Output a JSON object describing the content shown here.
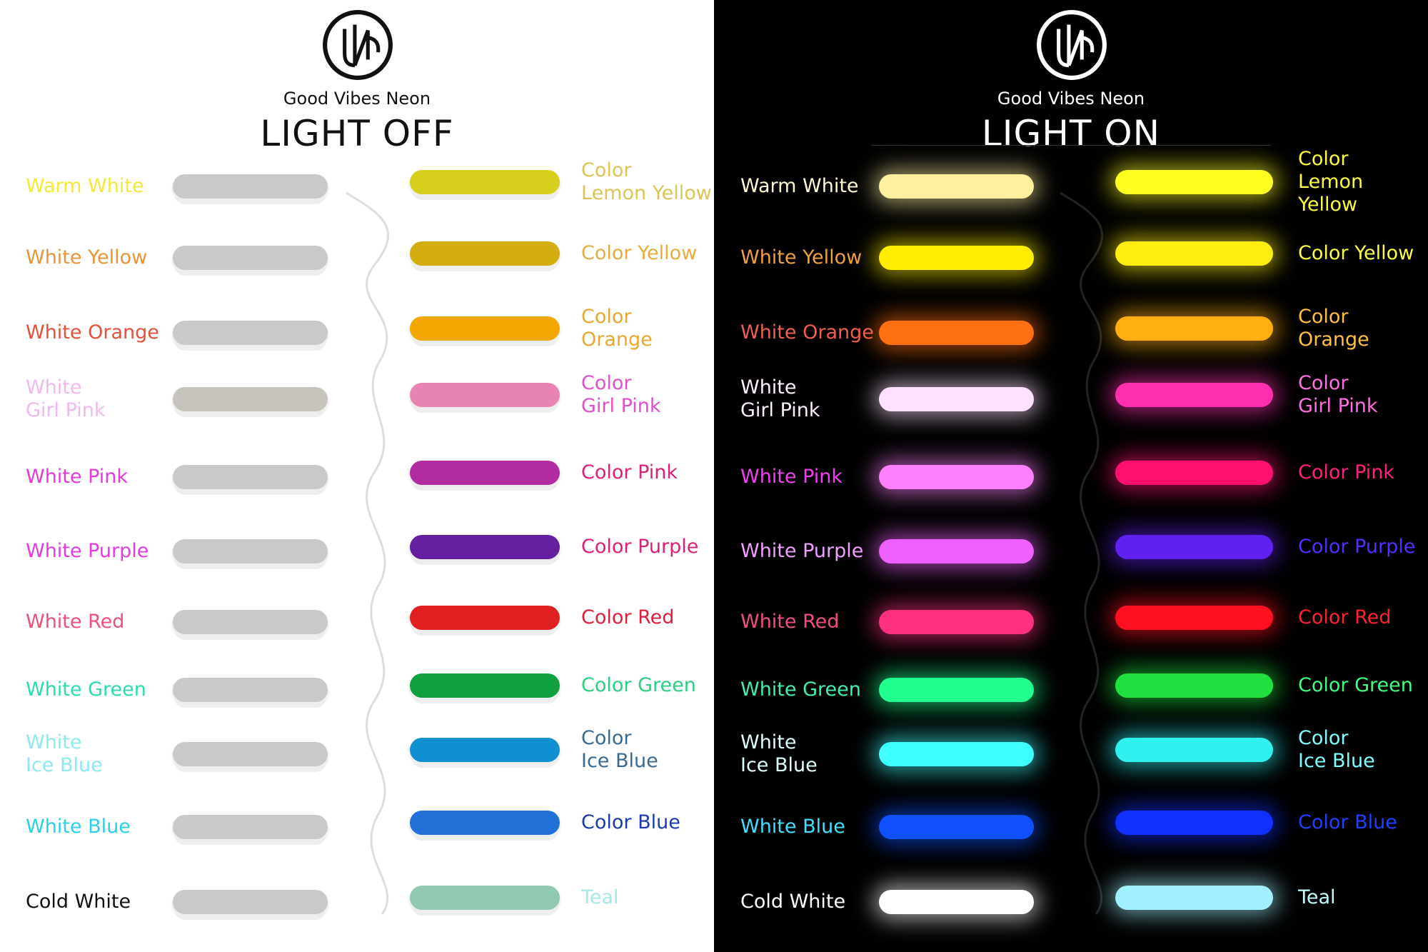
{
  "brand": "Good Vibes Neon",
  "panels": [
    {
      "id": "off",
      "title": "LIGHT OFF",
      "rows": [
        {
          "left": {
            "label": "Warm White",
            "text_color": "#f3e83c",
            "tube_color": "#c9c9c9"
          },
          "right": {
            "label": "Color\nLemon Yellow",
            "text_color": "#dcc555",
            "tube_color": "#d6cf1c"
          }
        },
        {
          "left": {
            "label": "White Yellow",
            "text_color": "#e8953a",
            "tube_color": "#c9c9c9"
          },
          "right": {
            "label": "Color Yellow",
            "text_color": "#e8ac3c",
            "tube_color": "#d4ae10"
          }
        },
        {
          "left": {
            "label": "White Orange",
            "text_color": "#e5503c",
            "tube_color": "#c9c9c9"
          },
          "right": {
            "label": "Color\nOrange",
            "text_color": "#e8a830",
            "tube_color": "#f2a800"
          }
        },
        {
          "left": {
            "label": "White\nGirl Pink",
            "text_color": "#f2b8ee",
            "tube_color": "#c6c4bc"
          },
          "right": {
            "label": "Color\nGirl Pink",
            "text_color": "#e050c8",
            "tube_color": "#e884b4"
          }
        },
        {
          "left": {
            "label": "White Pink",
            "text_color": "#e63ad8",
            "tube_color": "#c9c9c9"
          },
          "right": {
            "label": "Color Pink",
            "text_color": "#e01e78",
            "tube_color": "#b02ca0"
          }
        },
        {
          "left": {
            "label": "White Purple",
            "text_color": "#e43ae0",
            "tube_color": "#c9c9c9"
          },
          "right": {
            "label": "Color Purple",
            "text_color": "#e01e78",
            "tube_color": "#6420a0"
          }
        },
        {
          "left": {
            "label": "White Red",
            "text_color": "#ef4f78",
            "tube_color": "#c9c9c9"
          },
          "right": {
            "label": "Color Red",
            "text_color": "#e01e3a",
            "tube_color": "#e02020"
          }
        },
        {
          "left": {
            "label": "White Green",
            "text_color": "#2adcb0",
            "tube_color": "#c9c9c9"
          },
          "right": {
            "label": "Color Green",
            "text_color": "#2ad080",
            "tube_color": "#10a040"
          }
        },
        {
          "left": {
            "label": "White\nIce Blue",
            "text_color": "#8ee8f0",
            "tube_color": "#c9c9c9"
          },
          "right": {
            "label": "Color\nIce Blue",
            "text_color": "#3a6a90",
            "tube_color": "#1090d0"
          }
        },
        {
          "left": {
            "label": "White Blue",
            "text_color": "#2ad0e8",
            "tube_color": "#c9c9c9"
          },
          "right": {
            "label": "Color Blue",
            "text_color": "#1a3ab0",
            "tube_color": "#2070d8"
          }
        },
        {
          "left": {
            "label": "Cold White",
            "text_color": "#111111",
            "tube_color": "#c9c9c9"
          },
          "right": {
            "label": "Teal",
            "text_color": "#a8e8e8",
            "tube_color": "#90c8b0"
          }
        }
      ]
    },
    {
      "id": "on",
      "title": "LIGHT ON",
      "rows": [
        {
          "left": {
            "label": "Warm White",
            "text_color": "#fff8d0",
            "tube_color": "#fff0a0"
          },
          "right": {
            "label": "Color\nLemon Yellow",
            "text_color": "#ffff40",
            "tube_color": "#ffff20"
          }
        },
        {
          "left": {
            "label": "White Yellow",
            "text_color": "#f0a040",
            "tube_color": "#ffee00"
          },
          "right": {
            "label": "Color Yellow",
            "text_color": "#ffff40",
            "tube_color": "#ffee10"
          }
        },
        {
          "left": {
            "label": "White Orange",
            "text_color": "#f06050",
            "tube_color": "#ff7010"
          },
          "right": {
            "label": "Color\nOrange",
            "text_color": "#ffc040",
            "tube_color": "#ffb010"
          }
        },
        {
          "left": {
            "label": "White\nGirl Pink",
            "text_color": "#fff0ff",
            "tube_color": "#ffe0ff"
          },
          "right": {
            "label": "Color\nGirl Pink",
            "text_color": "#ff70e0",
            "tube_color": "#ff30b0"
          }
        },
        {
          "left": {
            "label": "White Pink",
            "text_color": "#f040f0",
            "tube_color": "#ff80ff"
          },
          "right": {
            "label": "Color Pink",
            "text_color": "#ff2080",
            "tube_color": "#ff1070"
          }
        },
        {
          "left": {
            "label": "White Purple",
            "text_color": "#f0a0ff",
            "tube_color": "#f060ff"
          },
          "right": {
            "label": "Color Purple",
            "text_color": "#5030ff",
            "tube_color": "#6020f0"
          }
        },
        {
          "left": {
            "label": "White Red",
            "text_color": "#f05080",
            "tube_color": "#ff3080"
          },
          "right": {
            "label": "Color Red",
            "text_color": "#ff2030",
            "tube_color": "#ff1020"
          }
        },
        {
          "left": {
            "label": "White Green",
            "text_color": "#40f0b0",
            "tube_color": "#20ff90"
          },
          "right": {
            "label": "Color Green",
            "text_color": "#40ff80",
            "tube_color": "#20e040"
          }
        },
        {
          "left": {
            "label": "White\nIce Blue",
            "text_color": "#e0ffff",
            "tube_color": "#40ffff"
          },
          "right": {
            "label": "Color\nIce Blue",
            "text_color": "#80ffff",
            "tube_color": "#30f0f0"
          }
        },
        {
          "left": {
            "label": "White Blue",
            "text_color": "#40e0ff",
            "tube_color": "#1050ff"
          },
          "right": {
            "label": "Color Blue",
            "text_color": "#2040ff",
            "tube_color": "#1030ff"
          }
        },
        {
          "left": {
            "label": "Cold White",
            "text_color": "#ffffff",
            "tube_color": "#ffffff"
          },
          "right": {
            "label": "Teal",
            "text_color": "#c0ffff",
            "tube_color": "#a0f0ff"
          }
        }
      ]
    }
  ]
}
